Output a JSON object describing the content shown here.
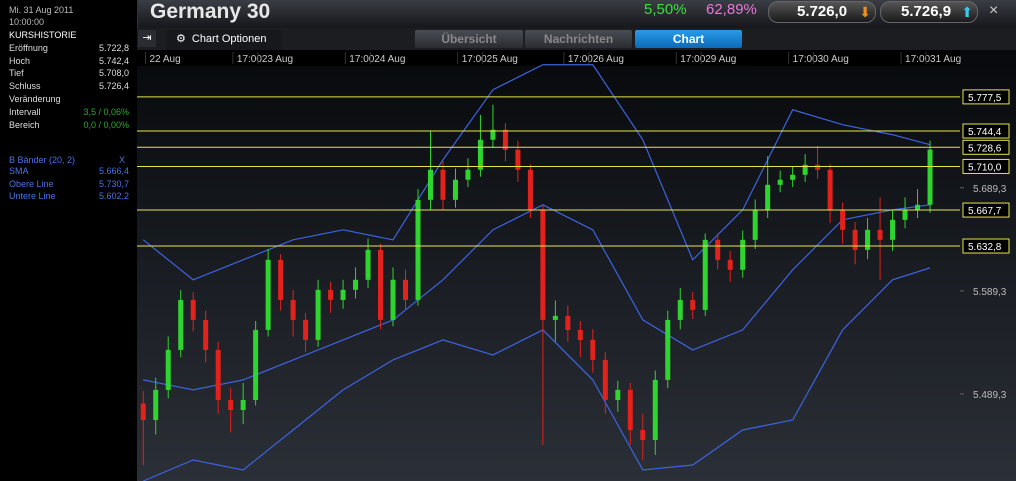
{
  "header": {
    "title": "Germany 30",
    "change_pct": "5,50%",
    "ratio_pct": "62,89%",
    "sell": "5.726,0",
    "buy": "5.726,9"
  },
  "sidebar": {
    "date": "Mi. 31 Aug 2011",
    "time": "10:00:00",
    "history_title": "KURSHISTORIE",
    "rows": [
      [
        "Eröffnung",
        "5.722,8"
      ],
      [
        "Hoch",
        "5.742,4"
      ],
      [
        "Tief",
        "5.708,0"
      ],
      [
        "Schluss",
        "5.726,4"
      ]
    ],
    "change_title": "Veränderung",
    "change_rows": [
      [
        "Intervall",
        "3,5 / 0,06%"
      ],
      [
        "Bereich",
        "0,0 / 0,00%"
      ]
    ],
    "indicator": "B Bänder (20, 2)",
    "indicator_close": "X",
    "indicator_rows": [
      [
        "SMA",
        "5.666,4"
      ],
      [
        "Obere Line",
        "5.730,7"
      ],
      [
        "Untere Line",
        "5.602,2"
      ]
    ]
  },
  "tabs": {
    "options": "Chart Optionen",
    "items": [
      "Übersicht",
      "Nachrichten",
      "Chart"
    ]
  },
  "chart_data": {
    "type": "candlestick",
    "up_color": "#2fd52f",
    "down_color": "#e3221c",
    "band_color": "#3d63e0",
    "level_color": "#e6e64a",
    "xlim": [
      -0.5,
      65.4
    ],
    "ylim": [
      5404.8,
      5823
    ],
    "xticks": [
      {
        "value": 0.5,
        "label": "22 Aug"
      },
      {
        "value": 7.5,
        "label": "17:00"
      },
      {
        "value": 9.5,
        "label": "23 Aug"
      },
      {
        "value": 16.5,
        "label": "17:00"
      },
      {
        "value": 18.5,
        "label": "24 Aug"
      },
      {
        "value": 25.5,
        "label": "17:00"
      },
      {
        "value": 27.5,
        "label": "25 Aug"
      },
      {
        "value": 34,
        "label": "17:00"
      },
      {
        "value": 36,
        "label": "26 Aug"
      },
      {
        "value": 43,
        "label": "17:00"
      },
      {
        "value": 45,
        "label": "29 Aug"
      },
      {
        "value": 52,
        "label": "17:00"
      },
      {
        "value": 54,
        "label": "30 Aug"
      },
      {
        "value": 61,
        "label": "17:00"
      },
      {
        "value": 63,
        "label": "31 Aug"
      }
    ],
    "yticks": [
      {
        "value": 5689.3,
        "label": "5.689,3"
      },
      {
        "value": 5589.3,
        "label": "5.589,3"
      },
      {
        "value": 5489.3,
        "label": "5.489,3"
      }
    ],
    "levels": [
      {
        "value": 5777.5,
        "label": "5.777,5"
      },
      {
        "value": 5744.4,
        "label": "5.744,4"
      },
      {
        "value": 5728.6,
        "label": "5.728,6"
      },
      {
        "value": 5710.0,
        "label": "5.710,0"
      },
      {
        "value": 5667.7,
        "label": "5.667,7"
      },
      {
        "value": 5632.8,
        "label": "5.632,8"
      }
    ],
    "ohlc": [
      [
        5480.0,
        5492,
        5420,
        5464.0
      ],
      [
        5464.0,
        5505,
        5450,
        5493.2
      ],
      [
        5493.2,
        5545,
        5485,
        5532.0
      ],
      [
        5532.0,
        5590,
        5525,
        5580.5
      ],
      [
        5580.5,
        5588,
        5550,
        5561.1
      ],
      [
        5561.1,
        5570,
        5520,
        5532.0
      ],
      [
        5532.0,
        5540,
        5470,
        5483.4
      ],
      [
        5483.4,
        5495,
        5452,
        5473.7
      ],
      [
        5473.7,
        5500,
        5460,
        5483.4
      ],
      [
        5483.4,
        5560,
        5478,
        5551.4
      ],
      [
        5551.4,
        5630,
        5545,
        5619.4
      ],
      [
        5619.4,
        5625,
        5570,
        5580.5
      ],
      [
        5580.5,
        5590,
        5545,
        5561.1
      ],
      [
        5561.1,
        5568,
        5530,
        5541.7
      ],
      [
        5541.7,
        5600,
        5535,
        5590.3
      ],
      [
        5590.3,
        5598,
        5568,
        5580.5
      ],
      [
        5580.5,
        5600,
        5572,
        5590.3
      ],
      [
        5590.3,
        5612,
        5582,
        5600.0
      ],
      [
        5600.0,
        5640,
        5592,
        5629.1
      ],
      [
        5629.1,
        5635,
        5552,
        5561.1
      ],
      [
        5561.1,
        5612,
        5555,
        5600.0
      ],
      [
        5600.0,
        5610,
        5570,
        5580.5
      ],
      [
        5580.5,
        5688,
        5575,
        5677.6
      ],
      [
        5677.6,
        5745,
        5668,
        5706.8
      ],
      [
        5706.8,
        5715,
        5668,
        5677.6
      ],
      [
        5677.6,
        5708,
        5670,
        5697.1
      ],
      [
        5697.1,
        5718,
        5690,
        5706.8
      ],
      [
        5706.8,
        5760,
        5700,
        5735.9
      ],
      [
        5735.9,
        5770,
        5728,
        5745.6
      ],
      [
        5745.6,
        5752,
        5715,
        5726.2
      ],
      [
        5726.2,
        5735,
        5695,
        5706.8
      ],
      [
        5706.8,
        5712,
        5660,
        5667.9
      ],
      [
        5667.9,
        5672,
        5440,
        5561.1
      ],
      [
        5561.1,
        5580,
        5540,
        5565.0
      ],
      [
        5565.0,
        5575,
        5540,
        5551.4
      ],
      [
        5551.4,
        5560,
        5525,
        5541.7
      ],
      [
        5541.7,
        5552,
        5510,
        5522.3
      ],
      [
        5522.3,
        5530,
        5470,
        5483.4
      ],
      [
        5483.4,
        5502,
        5472,
        5493.2
      ],
      [
        5493.2,
        5500,
        5440,
        5454.3
      ],
      [
        5454.3,
        5470,
        5425,
        5444.6
      ],
      [
        5444.6,
        5512,
        5430,
        5502.9
      ],
      [
        5502.9,
        5570,
        5495,
        5561.1
      ],
      [
        5561.1,
        5592,
        5552,
        5580.5
      ],
      [
        5580.5,
        5588,
        5562,
        5570.8
      ],
      [
        5570.8,
        5645,
        5565,
        5638.8
      ],
      [
        5638.8,
        5645,
        5610,
        5619.4
      ],
      [
        5619.4,
        5628,
        5598,
        5609.7
      ],
      [
        5609.7,
        5648,
        5602,
        5638.8
      ],
      [
        5638.8,
        5678,
        5630,
        5667.9
      ],
      [
        5667.9,
        5720,
        5660,
        5692.2
      ],
      [
        5692.2,
        5706,
        5685,
        5697.1
      ],
      [
        5697.1,
        5710,
        5690,
        5701.9
      ],
      [
        5701.9,
        5722,
        5695,
        5711.6
      ],
      [
        5711.6,
        5730,
        5698,
        5706.8
      ],
      [
        5706.8,
        5712,
        5655,
        5667.9
      ],
      [
        5667.9,
        5675,
        5635,
        5648.5
      ],
      [
        5648.5,
        5656,
        5615,
        5629.1
      ],
      [
        5629.1,
        5660,
        5620,
        5648.5
      ],
      [
        5648.5,
        5680,
        5600,
        5638.8
      ],
      [
        5638.8,
        5668,
        5628,
        5658.2
      ],
      [
        5658.2,
        5680,
        5650,
        5667.9
      ],
      [
        5667.9,
        5688,
        5660,
        5672.8
      ],
      [
        5672.8,
        5735,
        5665,
        5726.4
      ]
    ],
    "bands": {
      "x": [
        0,
        4,
        8,
        12,
        16,
        20,
        24,
        28,
        32,
        36,
        40,
        44,
        48,
        52,
        56,
        60,
        63
      ],
      "upper": [
        5638.8,
        5600.0,
        5619.4,
        5638.8,
        5648.5,
        5638.8,
        5716.5,
        5784.5,
        5808.7,
        5808.7,
        5735.9,
        5619.4,
        5667.9,
        5765.0,
        5750.5,
        5740.8,
        5731.1
      ],
      "middle": [
        5502.9,
        5493.2,
        5502.9,
        5522.3,
        5541.7,
        5561.1,
        5600.0,
        5648.5,
        5672.8,
        5648.5,
        5561.1,
        5532.0,
        5551.4,
        5609.7,
        5658.2,
        5667.9,
        5672.8
      ],
      "lower": [
        5404.8,
        5425.2,
        5415.5,
        5454.3,
        5493.2,
        5522.3,
        5541.7,
        5527.1,
        5551.4,
        5502.9,
        5415.5,
        5420.3,
        5454.3,
        5464.0,
        5551.4,
        5600.0,
        5611.6
      ]
    }
  }
}
